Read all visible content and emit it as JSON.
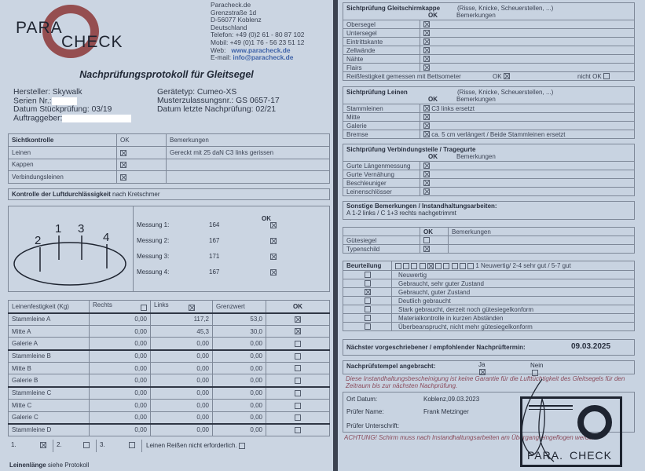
{
  "left": {
    "logo": {
      "line1": "PARA",
      "line2": "CHECK",
      "color": "#8c2a2a"
    },
    "address": [
      "Paracheck.de",
      "Grenzstraße 1d",
      "D-56077 Koblenz",
      "Deutschland",
      "Telefon: +49 (0)2 61 - 80 87 102",
      "Mobil: +49 (0)1 76 - 56 23 51 12"
    ],
    "web_label": "Web:",
    "web": "www.paracheck.de",
    "email_label": "E-mail:",
    "email": "info@paracheck.de",
    "title": "Nachprüfungsprotokoll für Gleitsegel",
    "info": {
      "hersteller": "Hersteller: Skywalk",
      "serien": "Serien Nr.:",
      "stueck": "Datum Stückprüfung: 03/19",
      "auftrag": "Auftraggeber:",
      "geraet": "Gerätetyp: Cumeo-XS",
      "muster": "Musterzulassungsnr.: GS 0657-17",
      "letzte": "Datum letzte Nachprüfung: 02/21"
    },
    "sicht": {
      "header": "Sichtkontrolle",
      "ok": "OK",
      "remarks": "Bemerkungen",
      "rows": [
        {
          "label": "Leinen",
          "ok": true,
          "remark": "Gereckt mit 25 daN C3 links gerissen"
        },
        {
          "label": "Kappen",
          "ok": true,
          "remark": ""
        },
        {
          "label": "Verbindungsleinen",
          "ok": true,
          "remark": ""
        }
      ]
    },
    "luft": {
      "title_bold": "Kontrolle der Luftdurchlässigkeit",
      "title_rest": " nach Kretschmer",
      "points": [
        "2",
        "1",
        "3",
        "4"
      ],
      "ok": "OK",
      "measurements": [
        {
          "label": "Messung 1:",
          "value": "164",
          "ok": true
        },
        {
          "label": "Messung 2:",
          "value": "167",
          "ok": true
        },
        {
          "label": "Messung 3:",
          "value": "171",
          "ok": true
        },
        {
          "label": "Messung 4:",
          "value": "167",
          "ok": true
        }
      ]
    },
    "strength": {
      "headers": {
        "name": "Leinenfestigkeit (Kg)",
        "rechts": "Rechts",
        "links": "Links",
        "grenz": "Grenzwert",
        "ok": "OK"
      },
      "rechts_checked": false,
      "links_checked": true,
      "rows": [
        {
          "name": "Stammleine A",
          "rechts": "0,00",
          "links": "117,2",
          "grenz": "53,0",
          "ok": true
        },
        {
          "name": "Mitte A",
          "rechts": "0,00",
          "links": "45,3",
          "grenz": "30,0",
          "ok": true
        },
        {
          "name": "Galerie A",
          "rechts": "0,00",
          "links": "0,00",
          "grenz": "0,00",
          "ok": false
        },
        {
          "name": "Stammleine B",
          "rechts": "0,00",
          "links": "0,00",
          "grenz": "0,00",
          "ok": false
        },
        {
          "name": "Mitte B",
          "rechts": "0,00",
          "links": "0,00",
          "grenz": "0,00",
          "ok": false
        },
        {
          "name": "Galerie B",
          "rechts": "0,00",
          "links": "0,00",
          "grenz": "0,00",
          "ok": false
        },
        {
          "name": "Stammleine C",
          "rechts": "0,00",
          "links": "0,00",
          "grenz": "0,00",
          "ok": false
        },
        {
          "name": "Mitte C",
          "rechts": "0,00",
          "links": "0,00",
          "grenz": "0,00",
          "ok": false
        },
        {
          "name": "Galerie C",
          "rechts": "0,00",
          "links": "0,00",
          "grenz": "0,00",
          "ok": false
        },
        {
          "name": "Stammleine D",
          "rechts": "0,00",
          "links": "0,00",
          "grenz": "0,00",
          "ok": false
        }
      ],
      "footer": [
        {
          "label": "1.",
          "checked": true
        },
        {
          "label": "2.",
          "checked": false
        },
        {
          "label": "3.",
          "checked": false
        }
      ],
      "not_required": "Leinen Reißen nicht erforderlich.",
      "not_required_checked": false
    },
    "laenge_bold": "Leinenlänge",
    "laenge_rest": " siehe Protokoll"
  },
  "right": {
    "kappe": {
      "title": "Sichtprüfung Gleitschirmkappe",
      "hint": "(Risse, Knicke, Scheuerstellen, ...)",
      "ok": "OK",
      "remarks": "Bemerkungen",
      "rows": [
        {
          "label": "Obersegel",
          "ok": true
        },
        {
          "label": "Untersegel",
          "ok": true
        },
        {
          "label": "Eintrittskante",
          "ok": true
        },
        {
          "label": "Zellwände",
          "ok": true
        },
        {
          "label": "Nähte",
          "ok": true
        },
        {
          "label": "Flairs",
          "ok": true
        }
      ],
      "betts": "Reißfestigkeit gemessen mit Bettsometer",
      "betts_ok": "OK",
      "betts_ok_checked": true,
      "betts_nok": "nicht OK",
      "betts_nok_checked": false
    },
    "leinen": {
      "title": "Sichtprüfung Leinen",
      "hint": "(Risse, Knicke, Scheuerstellen, ...)",
      "ok": "OK",
      "remarks": "Bemerkungen",
      "rows": [
        {
          "label": "Stammleinen",
          "ok": true,
          "remark": "C3 links ersetzt"
        },
        {
          "label": "Mitte",
          "ok": true,
          "remark": ""
        },
        {
          "label": "Galerie",
          "ok": true,
          "remark": ""
        },
        {
          "label": "Bremse",
          "ok": true,
          "remark": "ca. 5 cm verlängert / Beide Stammleinen ersetzt"
        }
      ]
    },
    "gurte": {
      "title": "Sichtprüfung Verbindungsteile / Tragegurte",
      "ok": "OK",
      "remarks": "Bemerkungen",
      "rows": [
        {
          "label": "Gurte Längenmessung",
          "ok": true
        },
        {
          "label": "Gurte Vernähung",
          "ok": true
        },
        {
          "label": "Beschleuniger",
          "ok": true
        },
        {
          "label": "Leinenschlösser",
          "ok": true
        }
      ]
    },
    "sonstige": {
      "title": "Sonstige Bemerkungen / Instandhaltungsarbeiten:",
      "text": "A 1-2 links  / C 1+3 rechts  nachgetrimmt"
    },
    "siegel": {
      "ok": "OK",
      "remarks": "Bemerkungen",
      "rows": [
        {
          "label": "Gütesiegel",
          "ok": false
        },
        {
          "label": "Typenschild",
          "ok": true
        }
      ]
    },
    "beurteilung": {
      "title": "Beurteilung",
      "scale_selected": 5,
      "scale_count": 10,
      "scale_text": "1 Neuwertig/ 2-4 sehr gut / 5-7 gut",
      "rows": [
        {
          "label": "Neuwertig",
          "checked": false
        },
        {
          "label": "Gebraucht, sehr guter Zustand",
          "checked": false
        },
        {
          "label": "Gebraucht, guter Zustand",
          "checked": true
        },
        {
          "label": "Deutlich gebraucht",
          "checked": false
        },
        {
          "label": "Stark gebraucht, derzeit noch gütesiegelkonform",
          "checked": false
        },
        {
          "label": "Materialkontrolle in kurzen Abständen",
          "checked": false
        },
        {
          "label": "Überbeansprucht, nicht mehr gütesiegelkonform",
          "checked": false
        }
      ]
    },
    "next": {
      "label": "Nächster vorgeschriebener / empfohlender Nachprüftermin:",
      "date": "09.03.2025"
    },
    "stempel": {
      "label": "Nachprüfstempel angebracht:",
      "ja": "Ja",
      "nein": "Nein",
      "ja_checked": true,
      "nein_checked": false
    },
    "disclaimer": "Diese Instandhaltungsbescheinigung ist keine Garantie für die Lufttüchtigkeit des Gleitsegels für den Zeitraum bis zur nächsten Nachprüfung.",
    "sign": {
      "ort_label": "Ort Datum:",
      "ort": "Koblenz,09.03.2023",
      "name_label": "Prüfer Name:",
      "name": "Frank Metzinger",
      "sig_label": "Prüfer Unterschrift:"
    },
    "warning": "ACHTUNG! Schirm muss nach Instandhaltungsarbeiten am Übergang eingeflogen werden",
    "stamp": {
      "line1": "PARA.",
      "line2": "CHECK"
    }
  }
}
